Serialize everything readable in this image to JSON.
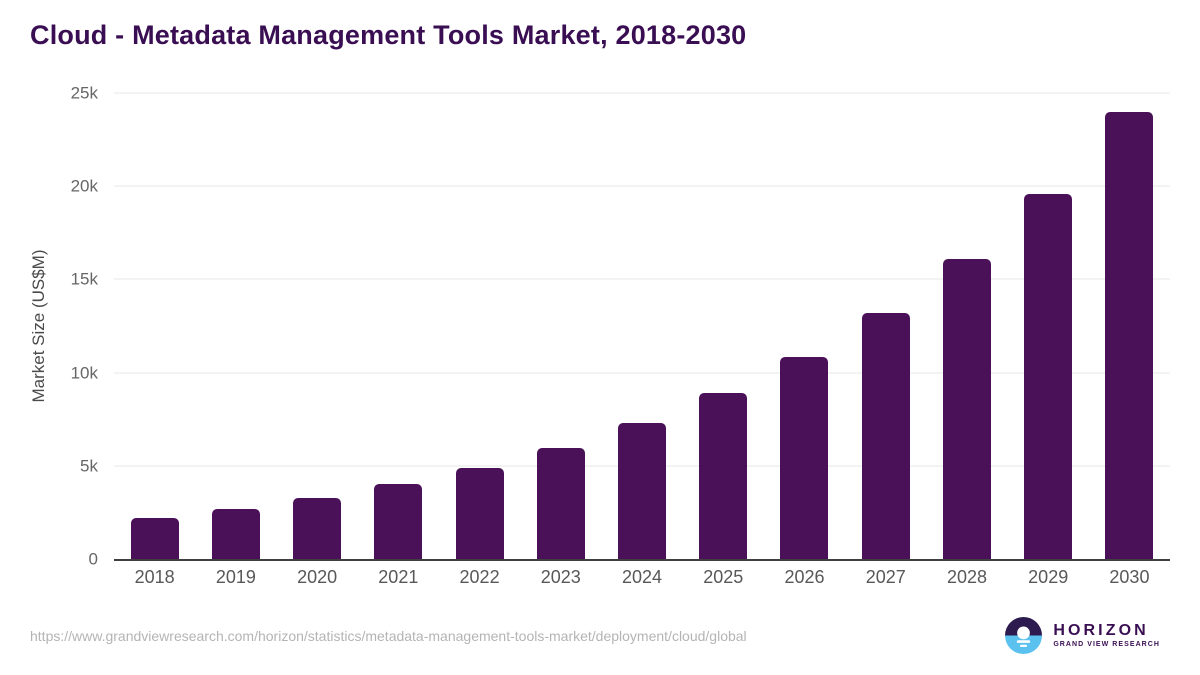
{
  "header": {
    "title": "Cloud - Metadata Management Tools Market, 2018-2030"
  },
  "chart_data": {
    "type": "bar",
    "title": "Cloud - Metadata Management Tools Market, 2018-2030",
    "categories": [
      "2018",
      "2019",
      "2020",
      "2021",
      "2022",
      "2023",
      "2024",
      "2025",
      "2026",
      "2027",
      "2028",
      "2029",
      "2030"
    ],
    "values": [
      2200,
      2700,
      3300,
      4050,
      4900,
      5950,
      7300,
      8900,
      10850,
      13200,
      16100,
      19600,
      24000
    ],
    "unit": "US$M",
    "xlabel": "",
    "ylabel": "Market Size (US$M)",
    "ylim": [
      0,
      25000
    ],
    "yticks": [
      {
        "value": 0,
        "label": "0"
      },
      {
        "value": 5000,
        "label": "5k"
      },
      {
        "value": 10000,
        "label": "10k"
      },
      {
        "value": 15000,
        "label": "15k"
      },
      {
        "value": 20000,
        "label": "20k"
      },
      {
        "value": 25000,
        "label": "25k"
      }
    ],
    "grid": "horizontal",
    "legend": "none",
    "bar_color": "#4a1158"
  },
  "footer": {
    "source_url": "https://www.grandviewresearch.com/horizon/statistics/metadata-management-tools-market/deployment/cloud/global",
    "logo": {
      "brand": "HORIZON",
      "subbrand": "GRAND VIEW RESEARCH",
      "icon": "horizon-sunrise-icon",
      "icon_colors": {
        "dark": "#2d1a4e",
        "blue": "#5bc2f0"
      }
    }
  },
  "colors": {
    "background": "#ffffff",
    "title": "#3a0e52",
    "axis_line": "#3f3f3f",
    "gridline": "#e7e7e7",
    "xtick_label": "#58585a",
    "ytick_label": "#666666",
    "url_text": "#b4b4b4"
  }
}
